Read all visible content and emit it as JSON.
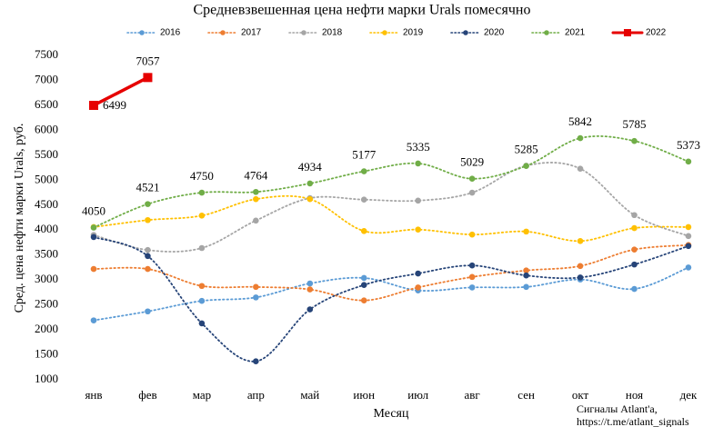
{
  "chart_data": {
    "type": "line",
    "title": "Средневзвешенная цена нефти марки Urals помесячно",
    "y_label": "Сред. цена нефти марки Urals, руб.",
    "x_label": "Месяц",
    "annotation": [
      "Сигналы Atlant'a,",
      "https://t.me/atlant_signals"
    ],
    "legend": "top",
    "grid": false,
    "smooth": true,
    "categories": [
      "янв",
      "фев",
      "мар",
      "апр",
      "май",
      "июн",
      "июл",
      "авг",
      "сен",
      "окт",
      "ноя",
      "дек"
    ],
    "ylim": [
      1000,
      7500
    ],
    "yticks": [
      1000,
      1500,
      2000,
      2500,
      3000,
      3500,
      4000,
      4500,
      5000,
      5500,
      6000,
      6500,
      7000,
      7500
    ],
    "series": [
      {
        "name": "2016",
        "color": "#5b9bd5",
        "style": "dotted",
        "values": [
          2190,
          2370,
          2580,
          2650,
          2930,
          3040,
          2790,
          2850,
          2860,
          3010,
          2820,
          3250
        ]
      },
      {
        "name": "2017",
        "color": "#ed7d31",
        "style": "dotted",
        "values": [
          3220,
          3220,
          2880,
          2860,
          2810,
          2590,
          2850,
          3060,
          3190,
          3280,
          3610,
          3700
        ]
      },
      {
        "name": "2018",
        "color": "#a5a5a5",
        "style": "dotted",
        "values": [
          3900,
          3600,
          3640,
          4190,
          4640,
          4610,
          4590,
          4750,
          5290,
          5230,
          4300,
          3880
        ]
      },
      {
        "name": "2019",
        "color": "#ffc000",
        "style": "dotted",
        "values": [
          4060,
          4200,
          4290,
          4620,
          4620,
          3980,
          4010,
          3910,
          3970,
          3780,
          4040,
          4060
        ]
      },
      {
        "name": "2020",
        "color": "#264478",
        "style": "dotted",
        "values": [
          3860,
          3480,
          2130,
          1370,
          2410,
          2900,
          3130,
          3290,
          3090,
          3050,
          3310,
          3680
        ]
      },
      {
        "name": "2021",
        "color": "#70ad47",
        "style": "dotted",
        "data_labels": true,
        "values": [
          4050,
          4521,
          4750,
          4764,
          4934,
          5177,
          5335,
          5029,
          5285,
          5842,
          5785,
          5373
        ]
      },
      {
        "name": "2022",
        "color": "#e60000",
        "style": "solid",
        "data_labels": true,
        "values": [
          6499,
          7057,
          null,
          null,
          null,
          null,
          null,
          null,
          null,
          null,
          null,
          null
        ]
      }
    ]
  }
}
